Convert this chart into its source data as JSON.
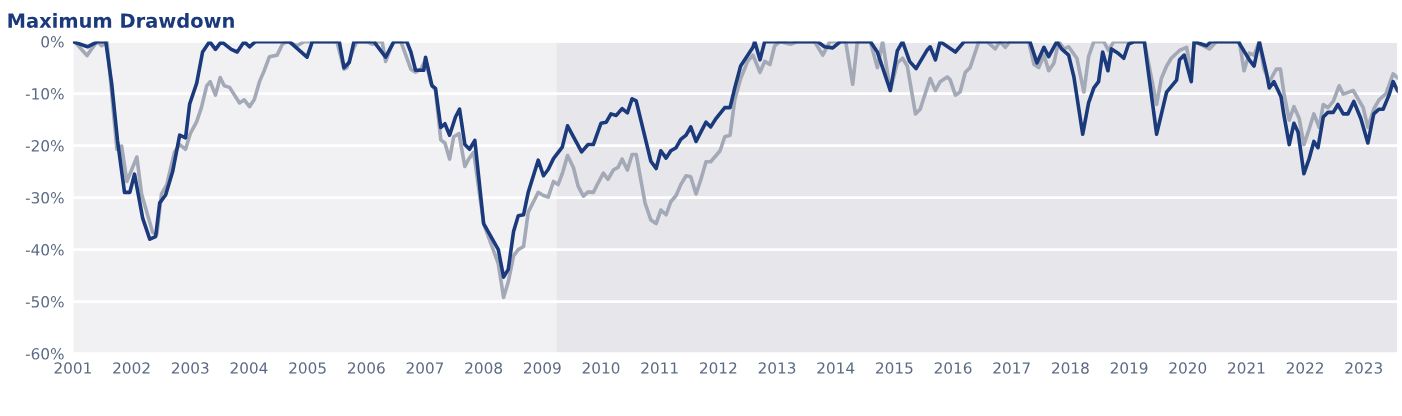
{
  "chart_data": {
    "type": "line",
    "title": "Maximum Drawdown",
    "xlim": [
      2001,
      2023.58
    ],
    "xticks": [
      2001,
      2002,
      2003,
      2004,
      2005,
      2006,
      2007,
      2008,
      2009,
      2010,
      2011,
      2012,
      2013,
      2014,
      2015,
      2016,
      2017,
      2018,
      2019,
      2020,
      2021,
      2022,
      2023
    ],
    "ylim": [
      -60,
      0
    ],
    "yticks": [
      {
        "value": -60,
        "label": "-60%"
      },
      {
        "value": -50,
        "label": "-50%"
      },
      {
        "value": -40,
        "label": "-40%"
      },
      {
        "value": -30,
        "label": "-30%"
      },
      {
        "value": -20,
        "label": "-20%"
      },
      {
        "value": -10,
        "label": "-10%"
      },
      {
        "value": 0,
        "label": "0%"
      }
    ],
    "grid": "y",
    "marker": "none",
    "line_style": "solid",
    "bands": [
      {
        "axis": "x",
        "from": 2001,
        "to": 2009.24,
        "color": "#f1f1f4"
      },
      {
        "axis": "x",
        "from": 2009.24,
        "to": 2023.58,
        "color": "#e6e6eb"
      }
    ],
    "series": [
      {
        "color": "#a3a9b6",
        "x": [
          2001.03,
          2001.24,
          2001.32,
          2001.41,
          2001.49,
          2001.58,
          2001.75,
          2001.83,
          2001.92,
          2002.09,
          2002.17,
          2002.36,
          2002.43,
          2002.51,
          2002.6,
          2002.73,
          2002.82,
          2002.92,
          2003.0,
          2003.11,
          2003.19,
          2003.28,
          2003.34,
          2003.43,
          2003.51,
          2003.58,
          2003.67,
          2003.84,
          2003.92,
          2004.01,
          2004.09,
          2004.18,
          2004.26,
          2004.35,
          2004.48,
          2004.57,
          2004.65,
          2004.82,
          2004.94,
          2005.5,
          2005.62,
          2005.67,
          2005.79,
          2005.84,
          2006.01,
          2006.1,
          2006.22,
          2006.27,
          2006.33,
          2006.42,
          2006.47,
          2006.59,
          2006.76,
          2006.84,
          2006.93,
          2007.01,
          2007.1,
          2007.18,
          2007.27,
          2007.34,
          2007.42,
          2007.49,
          2007.58,
          2007.68,
          2007.75,
          2007.83,
          2008.0,
          2008.25,
          2008.34,
          2008.42,
          2008.51,
          2008.59,
          2008.68,
          2008.76,
          2008.85,
          2008.93,
          2009.02,
          2009.1,
          2009.19,
          2009.27,
          2009.34,
          2009.43,
          2009.53,
          2009.61,
          2009.7,
          2009.78,
          2009.87,
          2009.95,
          2010.04,
          2010.12,
          2010.21,
          2010.29,
          2010.36,
          2010.45,
          2010.53,
          2010.6,
          2010.75,
          2010.85,
          2010.94,
          2011.02,
          2011.11,
          2011.19,
          2011.28,
          2011.36,
          2011.45,
          2011.53,
          2011.62,
          2011.7,
          2011.79,
          2011.87,
          2012.03,
          2012.11,
          2012.2,
          2012.28,
          2012.38,
          2012.5,
          2012.59,
          2012.71,
          2012.79,
          2012.88,
          2012.96,
          2013.05,
          2013.23,
          2013.35,
          2013.64,
          2013.78,
          2013.9,
          2014.17,
          2014.29,
          2014.37,
          2014.59,
          2014.71,
          2014.8,
          2014.93,
          2015.05,
          2015.14,
          2015.22,
          2015.36,
          2015.44,
          2015.61,
          2015.7,
          2015.78,
          2015.9,
          2015.95,
          2016.04,
          2016.12,
          2016.21,
          2016.29,
          2016.44,
          2016.58,
          2016.72,
          2016.8,
          2016.89,
          2016.97,
          2017.29,
          2017.38,
          2017.46,
          2017.55,
          2017.63,
          2017.72,
          2017.8,
          2017.89,
          2017.97,
          2018.11,
          2018.23,
          2018.31,
          2018.4,
          2018.57,
          2018.65,
          2018.74,
          2019.26,
          2019.47,
          2019.55,
          2019.64,
          2019.72,
          2019.86,
          2019.98,
          2020.06,
          2020.11,
          2020.32,
          2020.37,
          2020.49,
          2020.88,
          2020.96,
          2021.05,
          2021.13,
          2021.22,
          2021.3,
          2021.39,
          2021.51,
          2021.58,
          2021.64,
          2021.73,
          2021.81,
          2021.9,
          2021.98,
          2022.07,
          2022.15,
          2022.24,
          2022.31,
          2022.39,
          2022.48,
          2022.58,
          2022.65,
          2022.82,
          2022.99,
          2023.07,
          2023.17,
          2023.26,
          2023.38,
          2023.5,
          2023.58
        ],
        "values": [
          0,
          -2.7,
          -1.4,
          0,
          -0.8,
          0,
          -20.7,
          -20.1,
          -26.9,
          -22.2,
          -29.3,
          -36.7,
          -37,
          -29.3,
          -27.5,
          -21.3,
          -19.8,
          -20.7,
          -17.7,
          -15.4,
          -12.7,
          -8.5,
          -7.7,
          -10.3,
          -6.9,
          -8.5,
          -8.8,
          -11.8,
          -11.2,
          -12.5,
          -11.2,
          -7.7,
          -5.6,
          -2.9,
          -2.6,
          -0.5,
          0,
          -0.8,
          0,
          0,
          -5.3,
          -5,
          -1.1,
          0,
          0,
          -0.5,
          0,
          0,
          -3.8,
          -1.1,
          0,
          0,
          -5.3,
          -5.9,
          -5.3,
          -3.5,
          -8,
          -9.4,
          -18.9,
          -19.5,
          -22.6,
          -18.3,
          -17.7,
          -24,
          -22.5,
          -21.3,
          -35,
          -42.7,
          -49.2,
          -46.2,
          -41.2,
          -40,
          -39.4,
          -32.8,
          -30.8,
          -29,
          -29.6,
          -29.9,
          -26.9,
          -27.5,
          -25.4,
          -21.9,
          -24.2,
          -27.8,
          -29.7,
          -28.9,
          -29,
          -27.2,
          -25.3,
          -26.5,
          -24.7,
          -24.2,
          -22.6,
          -24.7,
          -21.7,
          -21.7,
          -31,
          -34.3,
          -35,
          -32.4,
          -33.3,
          -30.8,
          -29.6,
          -27.5,
          -25.8,
          -26,
          -29.3,
          -26.6,
          -23.1,
          -23.1,
          -21,
          -18.3,
          -18,
          -11.2,
          -7.1,
          -3.8,
          -2.6,
          -5.9,
          -3.8,
          -4.4,
          -0.8,
          0,
          -0.5,
          0,
          0,
          -2.6,
          0,
          0,
          -8.2,
          0,
          0,
          -5,
          0,
          -9.4,
          -4.1,
          -3.2,
          -4.7,
          -13.9,
          -13,
          -7.1,
          -9.4,
          -7.7,
          -6.8,
          -7.3,
          -10.3,
          -9.7,
          -5.9,
          -5,
          0,
          0,
          -1.4,
          0,
          -1.1,
          0,
          0,
          -4.4,
          -5,
          -2.6,
          -5.6,
          -4.1,
          0,
          -1.4,
          -1,
          -3.2,
          -9.7,
          -2.9,
          0,
          0,
          -1.7,
          0,
          0,
          -12.1,
          -7.1,
          -4.7,
          -3.2,
          -1.7,
          -1.1,
          -5.9,
          0,
          -1.1,
          -1.4,
          0,
          0,
          -5.6,
          -2.2,
          -2.6,
          0,
          -5.3,
          -7.7,
          -5.3,
          -5.3,
          -10,
          -15.1,
          -12.5,
          -14.8,
          -19.8,
          -16.8,
          -13.9,
          -16.5,
          -12.1,
          -12.7,
          -11.5,
          -8.5,
          -10.1,
          -9.4,
          -12.7,
          -16.5,
          -13,
          -11.2,
          -10,
          -6.2,
          -7
        ]
      },
      {
        "color": "#1b3a7c",
        "x": [
          2001.0,
          2001.25,
          2001.42,
          2001.56,
          2001.66,
          2001.76,
          2001.88,
          2001.97,
          2002.05,
          2002.19,
          2002.31,
          2002.41,
          2002.48,
          2002.58,
          2002.7,
          2002.82,
          2002.92,
          2002.99,
          2003.11,
          2003.21,
          2003.33,
          2003.43,
          2003.53,
          2003.7,
          2003.8,
          2003.92,
          2004.01,
          2004.11,
          2004.69,
          2004.99,
          2005.08,
          2005.54,
          2005.62,
          2005.71,
          2005.79,
          2006.13,
          2006.33,
          2006.47,
          2006.69,
          2006.76,
          2006.84,
          2006.98,
          2007.01,
          2007.12,
          2007.18,
          2007.27,
          2007.34,
          2007.42,
          2007.52,
          2007.59,
          2007.68,
          2007.76,
          2007.85,
          2008.0,
          2008.25,
          2008.34,
          2008.42,
          2008.51,
          2008.59,
          2008.68,
          2008.76,
          2008.93,
          2009.02,
          2009.1,
          2009.19,
          2009.34,
          2009.43,
          2009.67,
          2009.78,
          2009.87,
          2010.0,
          2010.09,
          2010.17,
          2010.26,
          2010.36,
          2010.45,
          2010.53,
          2010.6,
          2010.85,
          2010.94,
          2011.02,
          2011.11,
          2011.19,
          2011.28,
          2011.36,
          2011.45,
          2011.53,
          2011.62,
          2011.79,
          2011.87,
          2011.96,
          2012.11,
          2012.2,
          2012.28,
          2012.38,
          2012.59,
          2012.62,
          2012.71,
          2012.79,
          2013.69,
          2013.81,
          2013.95,
          2014.08,
          2014.59,
          2014.71,
          2014.83,
          2014.93,
          2015.05,
          2015.14,
          2015.26,
          2015.37,
          2015.56,
          2015.61,
          2015.7,
          2015.78,
          2016.04,
          2016.19,
          2017.31,
          2017.43,
          2017.55,
          2017.63,
          2017.77,
          2017.85,
          2017.97,
          2018.06,
          2018.21,
          2018.31,
          2018.4,
          2018.48,
          2018.55,
          2018.64,
          2018.7,
          2018.82,
          2018.91,
          2018.99,
          2019.09,
          2019.26,
          2019.47,
          2019.64,
          2019.81,
          2019.86,
          2019.94,
          2020.06,
          2020.11,
          2020.32,
          2020.4,
          2020.86,
          2021.05,
          2021.13,
          2021.22,
          2021.34,
          2021.39,
          2021.47,
          2021.59,
          2021.64,
          2021.73,
          2021.81,
          2021.88,
          2021.98,
          2022.07,
          2022.15,
          2022.22,
          2022.31,
          2022.39,
          2022.48,
          2022.56,
          2022.65,
          2022.73,
          2022.83,
          2022.95,
          2023.07,
          2023.17,
          2023.26,
          2023.33,
          2023.43,
          2023.5,
          2023.58
        ],
        "values": [
          0,
          -1,
          0,
          0,
          -8,
          -19,
          -29,
          -29,
          -25.5,
          -34,
          -38,
          -37.5,
          -31,
          -29.5,
          -25,
          -18,
          -18.5,
          -12,
          -8,
          -2,
          0,
          -1.5,
          0,
          -1.5,
          -2,
          0,
          -1,
          0,
          0,
          -3,
          0,
          0,
          -5,
          -4,
          0,
          0,
          -3,
          0,
          0,
          -2,
          -5.5,
          -5.5,
          -3,
          -8.5,
          -9,
          -16.5,
          -15.8,
          -18,
          -14.5,
          -13,
          -19.8,
          -20.7,
          -19,
          -35,
          -40,
          -45.3,
          -43.8,
          -36.5,
          -33.5,
          -33.3,
          -29,
          -22.8,
          -25.8,
          -24.6,
          -22.5,
          -20.3,
          -16.2,
          -21.2,
          -19.8,
          -19.8,
          -15.7,
          -15.5,
          -13.9,
          -14.2,
          -12.9,
          -13.7,
          -11,
          -11.4,
          -23,
          -24.4,
          -21,
          -22.4,
          -21,
          -20.4,
          -18.8,
          -18,
          -16.4,
          -19.2,
          -15.5,
          -16.4,
          -14.8,
          -12.7,
          -12.7,
          -8.9,
          -4.7,
          -1.1,
          0,
          -3.5,
          0,
          0,
          -1,
          -1.2,
          0,
          0,
          -2,
          -6,
          -9.4,
          -1.8,
          0,
          -3.8,
          -5.2,
          -1.6,
          -1,
          -3.5,
          0,
          -2,
          0,
          0,
          -4.1,
          -1.1,
          -2.9,
          0,
          -1.4,
          -2.6,
          -6.8,
          -17.8,
          -11.8,
          -8.9,
          -7.7,
          -2,
          -5.6,
          -1.4,
          -2.3,
          -3.2,
          -0.5,
          0,
          0,
          -17.8,
          -9.7,
          -7.4,
          -3.5,
          -2.6,
          -7.7,
          0,
          -0.8,
          0,
          0,
          -3.5,
          -4.7,
          0,
          -5.9,
          -8.9,
          -7.7,
          -10.6,
          -14.2,
          -19.8,
          -15.7,
          -17.4,
          -25.4,
          -22.5,
          -19.2,
          -20.4,
          -14.5,
          -13.6,
          -13.6,
          -12.1,
          -13.9,
          -13.9,
          -11.5,
          -14.8,
          -19.5,
          -13.9,
          -13,
          -13,
          -10.3,
          -7.7,
          -9.5
        ]
      }
    ]
  }
}
